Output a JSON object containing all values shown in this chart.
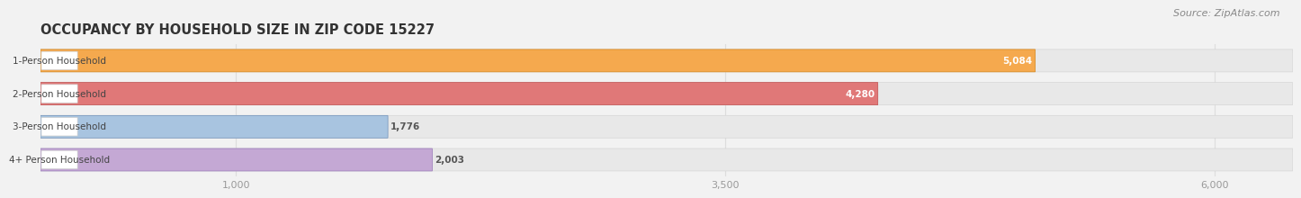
{
  "title": "OCCUPANCY BY HOUSEHOLD SIZE IN ZIP CODE 15227",
  "source": "Source: ZipAtlas.com",
  "categories": [
    "1-Person Household",
    "2-Person Household",
    "3-Person Household",
    "4+ Person Household"
  ],
  "values": [
    5084,
    4280,
    1776,
    2003
  ],
  "bar_colors": [
    "#F5A94E",
    "#E07878",
    "#A8C4E0",
    "#C4A8D4"
  ],
  "bar_edge_colors": [
    "#D4861A",
    "#C05050",
    "#7090B8",
    "#9878B8"
  ],
  "label_colors": [
    "#FFFFFF",
    "#FFFFFF",
    "#555555",
    "#555555"
  ],
  "value_white": [
    true,
    true,
    false,
    false
  ],
  "xlim_max": 6400,
  "xticks": [
    1000,
    3500,
    6000
  ],
  "xticklabels": [
    "1,000",
    "3,500",
    "6,000"
  ],
  "background_color": "#F2F2F2",
  "bar_bg_color": "#E8E8E8",
  "bar_bg_edge": "#D5D5D5",
  "label_box_color": "#FFFFFF",
  "title_color": "#333333",
  "source_color": "#888888",
  "tick_color": "#999999",
  "grid_color": "#DDDDDD",
  "title_fontsize": 10.5,
  "source_fontsize": 8,
  "label_fontsize": 7.5,
  "value_fontsize": 7.5,
  "tick_fontsize": 8,
  "bar_height": 0.68,
  "bar_gap": 0.32
}
